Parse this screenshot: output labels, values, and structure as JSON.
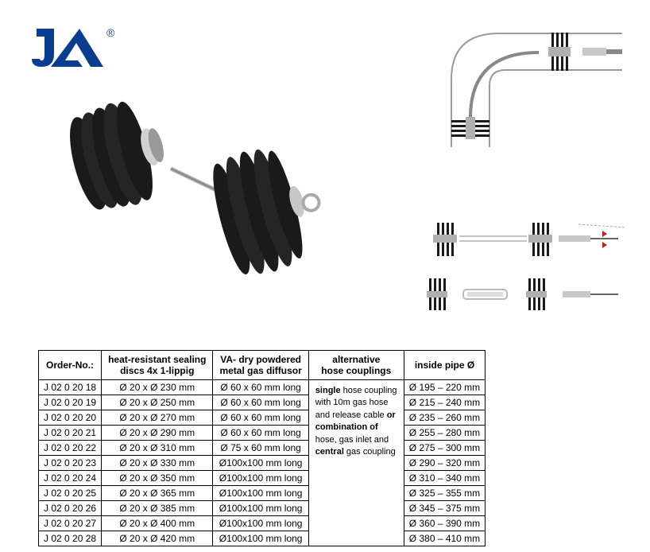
{
  "logo": {
    "brand_color": "#0a3d91",
    "registered_mark": "®"
  },
  "table": {
    "headers": {
      "order": "Order-No.:",
      "discs": "heat-resistant sealing\ndiscs 4x 1-lippig",
      "diffusor": "VA- dry powdered\nmetal gas diffusor",
      "alt": "alternative\nhose couplings",
      "pipe": "inside pipe Ø"
    },
    "rows": [
      {
        "order": "J 02 0 20 18",
        "discs": "Ø 20 x Ø 230 mm",
        "diffusor": "Ø 60 x 60 mm long",
        "pipe": "Ø 195 – 220 mm"
      },
      {
        "order": "J 02 0 20 19",
        "discs": "Ø 20 x Ø 250 mm",
        "diffusor": "Ø 60 x 60 mm long",
        "pipe": "Ø 215 – 240 mm"
      },
      {
        "order": "J 02 0 20 20",
        "discs": "Ø 20 x Ø 270 mm",
        "diffusor": "Ø 60 x 60 mm long",
        "pipe": "Ø 235 – 260 mm"
      },
      {
        "order": "J 02 0 20 21",
        "discs": "Ø 20 x Ø 290 mm",
        "diffusor": "Ø 60 x 60 mm long",
        "pipe": "Ø 255 – 280 mm"
      },
      {
        "order": "J 02 0 20 22",
        "discs": "Ø 20 x Ø 310 mm",
        "diffusor": "Ø 75 x 60 mm long",
        "pipe": "Ø 275 – 300 mm"
      },
      {
        "order": "J 02 0 20 23",
        "discs": "Ø 20 x Ø 330 mm",
        "diffusor": "Ø100x100 mm long",
        "pipe": "Ø 290 – 320 mm"
      },
      {
        "order": "J 02 0 20 24",
        "discs": "Ø 20 x Ø 350 mm",
        "diffusor": "Ø100x100 mm long",
        "pipe": "Ø 310 – 340 mm"
      },
      {
        "order": "J 02 0 20 25",
        "discs": "Ø 20 x Ø 365 mm",
        "diffusor": "Ø100x100 mm long",
        "pipe": "Ø 325 – 355 mm"
      },
      {
        "order": "J 02 0 20 26",
        "discs": "Ø 20 x Ø 385 mm",
        "diffusor": "Ø100x100 mm long",
        "pipe": "Ø 345 – 375 mm"
      },
      {
        "order": "J 02 0 20 27",
        "discs": "Ø 20 x Ø 400 mm",
        "diffusor": "Ø100x100 mm long",
        "pipe": "Ø 360 – 390 mm"
      },
      {
        "order": "J 02 0 20 28",
        "discs": "Ø 20 x Ø 420 mm",
        "diffusor": "Ø100x100 mm long",
        "pipe": "Ø 380 – 410 mm"
      }
    ],
    "alt_text": {
      "p1a": "single",
      "p1b": " hose coupling with 10m gas hose and release cable ",
      "p1c": "or combination of",
      "p1d": " hose, gas inlet and ",
      "p1e": "central",
      "p1f": " gas coupling"
    }
  },
  "colors": {
    "black": "#1a1a1a",
    "metal": "#b0b0b0",
    "metal_light": "#d0d0d0",
    "pipe_gray": "#888888",
    "line_gray": "#9a9a9a",
    "arrow_red": "#c02020"
  }
}
